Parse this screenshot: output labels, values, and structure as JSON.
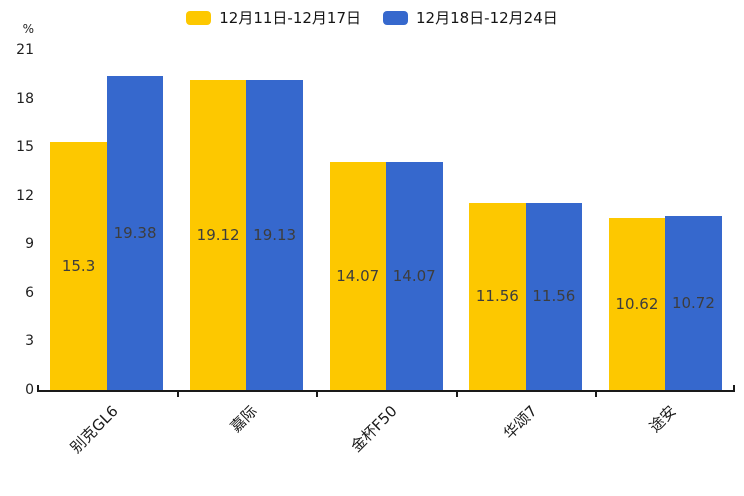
{
  "legend": {
    "items": [
      {
        "label": "12月11日-12月17日",
        "color": "#FDC800"
      },
      {
        "label": "12月18日-12月24日",
        "color": "#3668CD"
      }
    ]
  },
  "axis": {
    "unit_label": "%"
  },
  "chart_data": {
    "type": "bar",
    "title": "",
    "xlabel": "",
    "ylabel": "%",
    "categories": [
      "别克GL6",
      "嘉际",
      "金杯F50",
      "华颂7",
      "途安"
    ],
    "series": [
      {
        "name": "12月11日-12月17日",
        "color": "#FDC800",
        "values": [
          15.3,
          19.12,
          14.07,
          11.56,
          10.62
        ]
      },
      {
        "name": "12月18日-12月24日",
        "color": "#3668CD",
        "values": [
          19.38,
          19.13,
          14.07,
          11.56,
          10.72
        ]
      }
    ],
    "value_labels": [
      [
        "15.3",
        "19.12",
        "14.07",
        "11.56",
        "10.62"
      ],
      [
        "19.38",
        "19.13",
        "14.07",
        "11.56",
        "10.72"
      ]
    ],
    "ylim": [
      0,
      21
    ],
    "yticks": [
      0,
      3,
      6,
      9,
      12,
      15,
      18,
      21
    ],
    "grid": false,
    "legend_position": "top",
    "bar_label_color": "#3d3d3d",
    "axis_color": "#1a1a1a"
  }
}
